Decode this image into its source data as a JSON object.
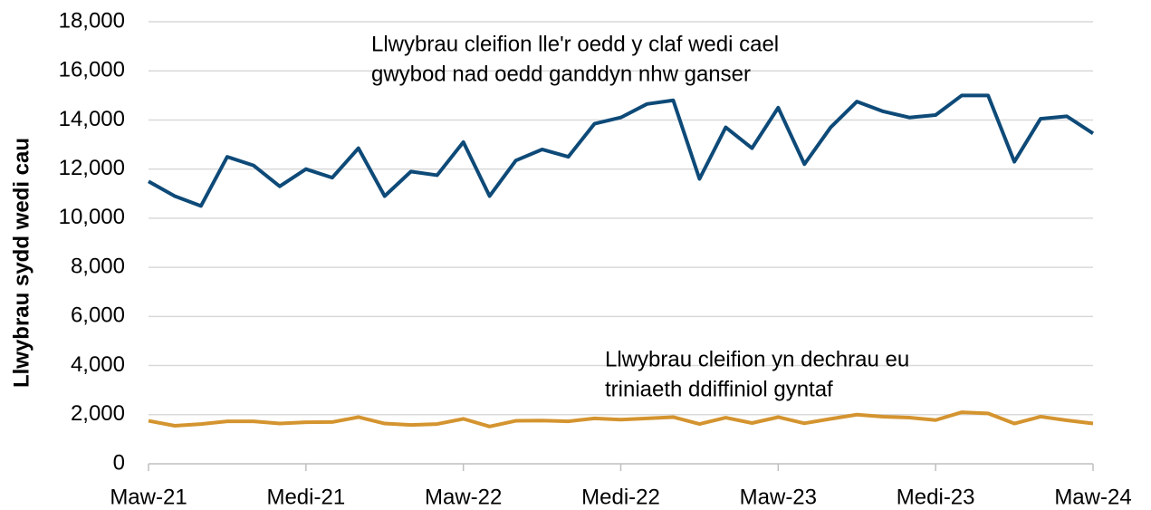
{
  "chart_data": {
    "type": "line",
    "y_label": "Llwybrau sydd wedi cau",
    "annotations": [
      [
        "Llwybrau cleifion lle'r oedd y claf wedi cael",
        "gwybod nad oedd ganddyn nhw ganser"
      ],
      [
        "Llwybrau cleifion yn dechrau eu",
        "triniaeth ddiffiniol gyntaf"
      ]
    ],
    "categories": [
      "Maw-21",
      null,
      null,
      null,
      null,
      null,
      "Medi-21",
      null,
      null,
      null,
      null,
      null,
      "Maw-22",
      null,
      null,
      null,
      null,
      null,
      "Medi-22",
      null,
      null,
      null,
      null,
      null,
      "Maw-23",
      null,
      null,
      null,
      null,
      null,
      "Medi-23",
      null,
      null,
      null,
      null,
      null,
      "Maw-24"
    ],
    "series": [
      {
        "name": "Llwybrau cleifion lle'r oedd y claf wedi cael gwybod nad oedd ganddyn nhw ganser",
        "color": "#0e4a78",
        "values": [
          11500,
          10900,
          10500,
          12500,
          12150,
          11300,
          12000,
          11650,
          12850,
          10900,
          11900,
          11750,
          13100,
          10900,
          12350,
          12800,
          12500,
          13850,
          14100,
          14650,
          14800,
          11600,
          13700,
          12850,
          14500,
          12200,
          13700,
          14750,
          14350,
          14100,
          14200,
          15000,
          15000,
          12300,
          14050,
          14150,
          13450
        ]
      },
      {
        "name": "Llwybrau cleifion yn dechrau eu triniaeth ddiffiniol gyntaf",
        "color": "#d4942f",
        "values": [
          1750,
          1550,
          1620,
          1730,
          1730,
          1640,
          1690,
          1700,
          1900,
          1640,
          1580,
          1620,
          1830,
          1520,
          1750,
          1760,
          1730,
          1850,
          1800,
          1850,
          1900,
          1620,
          1880,
          1660,
          1900,
          1650,
          1830,
          2000,
          1920,
          1880,
          1780,
          2100,
          2050,
          1640,
          1920,
          1770,
          1640
        ]
      }
    ],
    "ylim": [
      0,
      18000
    ],
    "yticks": [
      0,
      {
        "value": 2000,
        "label": "2,000"
      },
      {
        "value": 4000,
        "label": "4,000"
      },
      {
        "value": 6000,
        "label": "6,000"
      },
      {
        "value": 8000,
        "label": "8,000"
      },
      {
        "value": 10000,
        "label": "10,000"
      },
      {
        "value": 12000,
        "label": "12,000"
      },
      {
        "value": 14000,
        "label": "14,000"
      },
      {
        "value": 16000,
        "label": "16,000"
      },
      {
        "value": 18000,
        "label": "18,000"
      }
    ],
    "grid": true
  }
}
